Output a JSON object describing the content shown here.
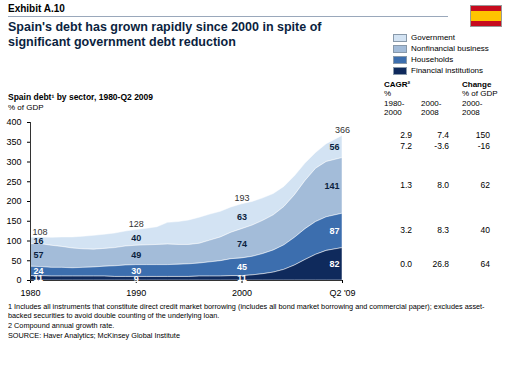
{
  "chart_data": {
    "type": "area",
    "stacked": true,
    "exhibit": "Exhibit A.10",
    "title": "Spain's debt has grown rapidly since 2000 in spite of significant government debt reduction",
    "subtitle": "Spain debt¹ by sector, 1980-Q2 2009",
    "y_label": "% of GDP",
    "x": [
      1980,
      1981,
      1982,
      1983,
      1984,
      1985,
      1986,
      1987,
      1988,
      1989,
      1990,
      1991,
      1992,
      1993,
      1994,
      1995,
      1996,
      1997,
      1998,
      1999,
      2000,
      2001,
      2002,
      2003,
      2004,
      2005,
      2006,
      2007,
      2008,
      2009.5
    ],
    "xlim": [
      1980,
      2009.5
    ],
    "xticks": [
      1980,
      1990,
      2000,
      {
        "value": 2009.5,
        "label": "Q2 '09"
      }
    ],
    "ylim": [
      0,
      400
    ],
    "yticks": [
      0,
      50,
      100,
      150,
      200,
      250,
      300,
      350,
      400
    ],
    "grid": false,
    "legend": "top-right",
    "data_labels": true,
    "series": [
      {
        "name": "Government",
        "color": "#d3e3f3",
        "values": [
          16,
          17,
          20,
          24,
          28,
          32,
          35,
          36,
          37,
          38,
          40,
          42,
          45,
          55,
          58,
          62,
          66,
          66,
          65,
          64,
          63,
          60,
          57,
          54,
          51,
          48,
          44,
          40,
          45,
          56
        ],
        "value_labels": [
          "16",
          null,
          null,
          null,
          null,
          null,
          null,
          null,
          null,
          null,
          "40",
          null,
          null,
          null,
          null,
          null,
          null,
          null,
          null,
          null,
          "63",
          null,
          null,
          null,
          null,
          null,
          null,
          null,
          null,
          "56"
        ]
      },
      {
        "name": "Nonfinancial business",
        "color": "#a3bcd9",
        "values": [
          57,
          58,
          56,
          53,
          50,
          47,
          45,
          45,
          46,
          48,
          49,
          50,
          51,
          52,
          50,
          49,
          50,
          55,
          60,
          67,
          74,
          79,
          84,
          89,
          97,
          108,
          122,
          135,
          140,
          141
        ],
        "value_labels": [
          "57",
          null,
          null,
          null,
          null,
          null,
          null,
          null,
          null,
          null,
          "49",
          null,
          null,
          null,
          null,
          null,
          null,
          null,
          null,
          null,
          "74",
          null,
          null,
          null,
          null,
          null,
          null,
          null,
          null,
          "141"
        ]
      },
      {
        "name": "Households",
        "color": "#3c6eae",
        "values": [
          24,
          23,
          22,
          22,
          21,
          22,
          23,
          25,
          27,
          29,
          30,
          30,
          30,
          30,
          31,
          32,
          33,
          36,
          39,
          43,
          45,
          47,
          51,
          56,
          62,
          70,
          78,
          83,
          85,
          87
        ],
        "value_labels": [
          "24",
          null,
          null,
          null,
          null,
          null,
          null,
          null,
          null,
          null,
          "30",
          null,
          null,
          null,
          null,
          null,
          null,
          null,
          null,
          null,
          "45",
          null,
          null,
          null,
          null,
          null,
          null,
          null,
          null,
          "87"
        ]
      },
      {
        "name": "Financial institutions",
        "color": "#0f2a5c",
        "values": [
          11,
          11,
          10,
          10,
          10,
          10,
          10,
          10,
          9,
          9,
          9,
          9,
          9,
          9,
          9,
          9,
          10,
          10,
          10,
          11,
          11,
          13,
          16,
          20,
          27,
          38,
          52,
          65,
          75,
          82
        ],
        "value_labels": [
          "11",
          null,
          null,
          null,
          null,
          null,
          null,
          null,
          null,
          null,
          "9",
          null,
          null,
          null,
          null,
          null,
          null,
          null,
          null,
          null,
          "11",
          null,
          null,
          null,
          null,
          null,
          null,
          null,
          null,
          "82"
        ]
      }
    ],
    "totals": {
      "x": [
        1980,
        1990,
        2000,
        2009.5
      ],
      "values": [
        108,
        128,
        193,
        366
      ]
    },
    "table": {
      "groups": [
        {
          "title": "CAGR²",
          "unit": "%",
          "periods": [
            "1980-2000",
            "2000-2008"
          ]
        },
        {
          "title": "Change",
          "unit": "% of GDP",
          "periods": [
            "2000-2008"
          ]
        }
      ],
      "rows": [
        [
          "2.9",
          "7.4",
          "150"
        ],
        [
          "7.2",
          "-3.6",
          "-16"
        ],
        [
          "1.3",
          "8.0",
          "62"
        ],
        [
          "3.2",
          "8.3",
          "40"
        ],
        [
          "0.0",
          "26.8",
          "64"
        ]
      ]
    },
    "footnotes": [
      "1 Includes all instruments that constitute direct credit market borrowing (includes all bond market borrowing and commercial paper); excludes asset-backed securities to avoid double counting of the underlying loan.",
      "2 Compound annual growth rate."
    ],
    "source": "SOURCE: Haver Analytics; McKinsey Global Institute"
  }
}
